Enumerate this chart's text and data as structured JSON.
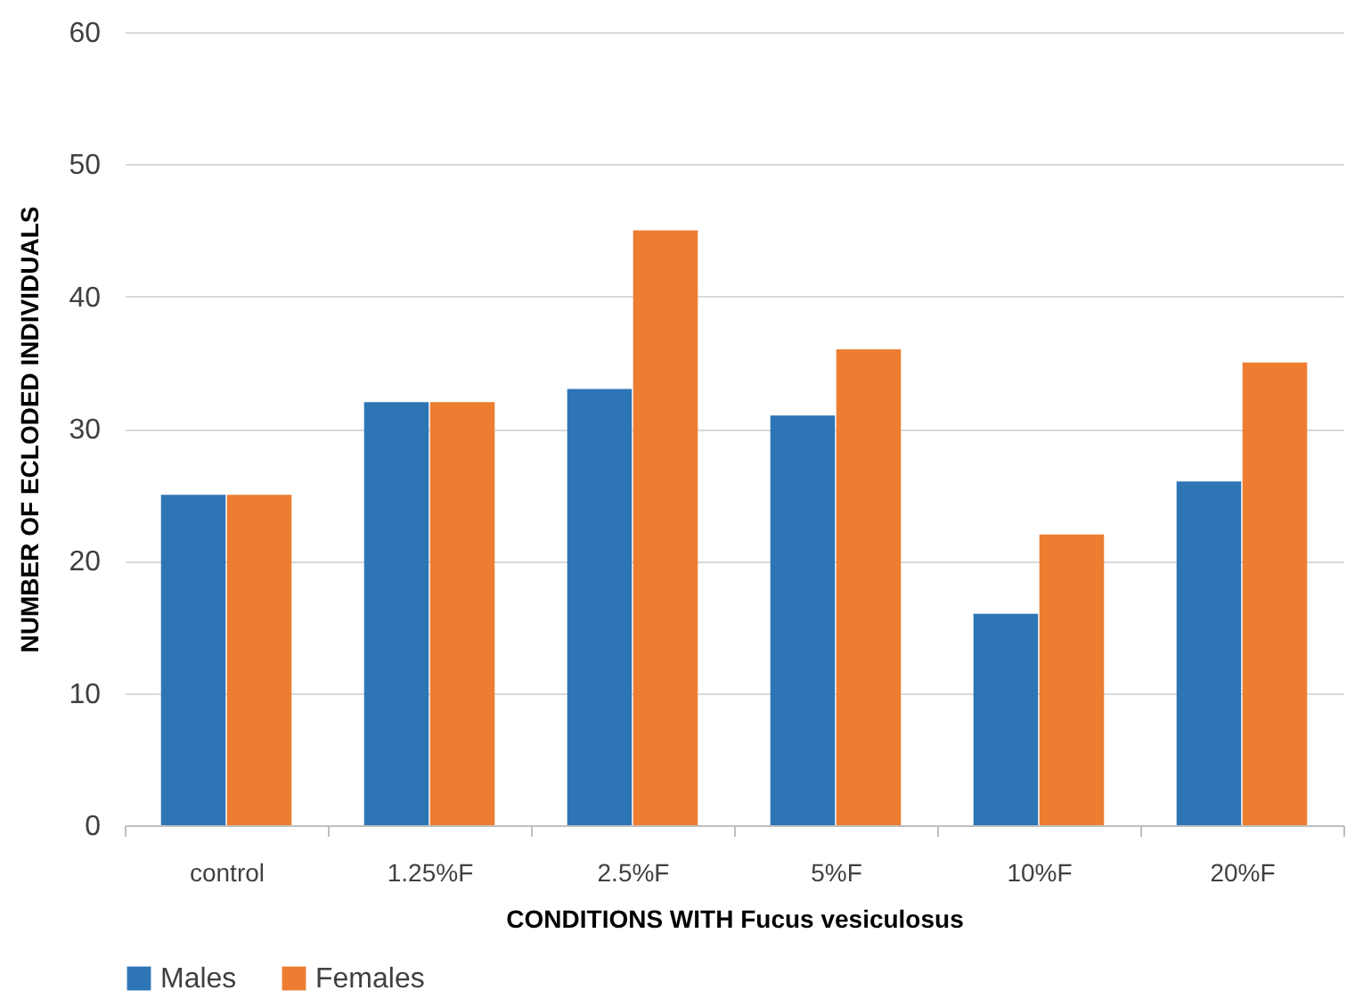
{
  "chart_data": {
    "type": "bar",
    "xlabel": "CONDITIONS WITH Fucus vesiculosus",
    "ylabel": "NUMBER OF ECLODED INDIVIDUALS",
    "categories": [
      "control",
      "1.25%F",
      "2.5%F",
      "5%F",
      "10%F",
      "20%F"
    ],
    "series": [
      {
        "name": "Males",
        "color": "#2e75b6",
        "values": [
          25,
          32,
          33,
          31,
          16,
          26
        ]
      },
      {
        "name": "Females",
        "color": "#ed7d31",
        "values": [
          25,
          32,
          45,
          36,
          22,
          35
        ]
      }
    ],
    "ylim": [
      0,
      60
    ],
    "yticks": [
      0,
      10,
      20,
      30,
      40,
      50,
      60
    ],
    "grid": "y",
    "legend": "bottom"
  }
}
